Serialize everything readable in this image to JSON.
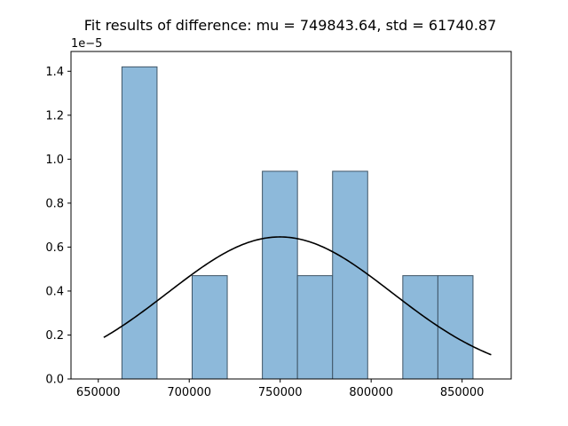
{
  "chart_data": {
    "type": "bar",
    "title": "Fit results of difference: mu = 749843.64,  std = 61740.87",
    "xlabel": "",
    "ylabel": "",
    "y_scale_label": "1e−5",
    "xlim": [
      635000,
      877000
    ],
    "ylim": [
      0,
      1.49
    ],
    "x_ticks": [
      650000,
      700000,
      750000,
      800000,
      850000
    ],
    "x_tick_labels": [
      "650000",
      "700000",
      "750000",
      "800000",
      "850000"
    ],
    "y_ticks": [
      0.0,
      0.2,
      0.4,
      0.6,
      0.8,
      1.0,
      1.2,
      1.4
    ],
    "y_tick_labels": [
      "0.0",
      "0.2",
      "0.4",
      "0.6",
      "0.8",
      "1.0",
      "1.2",
      "1.4"
    ],
    "grid": false,
    "bins": [
      {
        "x0": 663000,
        "x1": 682300,
        "value": 1.42
      },
      {
        "x0": 682300,
        "x1": 701600,
        "value": 0.0
      },
      {
        "x0": 701600,
        "x1": 720900,
        "value": 0.47
      },
      {
        "x0": 720900,
        "x1": 740200,
        "value": 0.0
      },
      {
        "x0": 740200,
        "x1": 759500,
        "value": 0.945
      },
      {
        "x0": 759500,
        "x1": 778800,
        "value": 0.47
      },
      {
        "x0": 778800,
        "x1": 798100,
        "value": 0.945
      },
      {
        "x0": 798100,
        "x1": 817400,
        "value": 0.0
      },
      {
        "x0": 817400,
        "x1": 836700,
        "value": 0.47
      },
      {
        "x0": 836700,
        "x1": 856000,
        "value": 0.47
      }
    ],
    "fit_curve": {
      "mu": 749843.64,
      "std": 61740.87,
      "x_range": [
        653000,
        866000
      ],
      "scale": 100000
    },
    "colors": {
      "bar_fill": "#8db9da",
      "bar_edge": "#3f5566",
      "curve": "#000000",
      "axis": "#000000"
    }
  }
}
